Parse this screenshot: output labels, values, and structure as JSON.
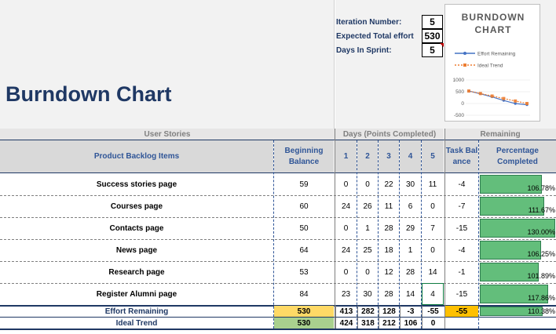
{
  "title": "Burndown Chart",
  "params": {
    "iteration_label": "Iteration Number:",
    "iteration_value": "5",
    "effort_label": "Expected Total effort",
    "effort_value": "530",
    "days_label": "Days In Sprint:",
    "days_value": "5"
  },
  "sections": {
    "user_stories": "User Stories",
    "days": "Days (Points Completed)",
    "remaining": "Remaining"
  },
  "headers": {
    "items": "Product Backlog Items",
    "beginning": "Beginning Balance",
    "days": [
      "1",
      "2",
      "3",
      "4",
      "5"
    ],
    "task_balance": "Task Balance",
    "percentage": "Percentage Completed"
  },
  "rows": [
    {
      "name": "Success stories page",
      "begin": "59",
      "days": [
        "0",
        "0",
        "22",
        "30",
        "11"
      ],
      "balance": "-4",
      "pct_text": "106.78%",
      "pct": 1.0678
    },
    {
      "name": "Courses page",
      "begin": "60",
      "days": [
        "24",
        "26",
        "11",
        "6",
        "0"
      ],
      "balance": "-7",
      "pct_text": "111.67%",
      "pct": 1.1167
    },
    {
      "name": "Contacts page",
      "begin": "50",
      "days": [
        "0",
        "1",
        "28",
        "29",
        "7"
      ],
      "balance": "-15",
      "pct_text": "130.00%",
      "pct": 1.3
    },
    {
      "name": "News page",
      "begin": "64",
      "days": [
        "24",
        "25",
        "18",
        "1",
        "0"
      ],
      "balance": "-4",
      "pct_text": "106.25%",
      "pct": 1.0625
    },
    {
      "name": "Research page",
      "begin": "53",
      "days": [
        "0",
        "0",
        "12",
        "28",
        "14"
      ],
      "balance": "-1",
      "pct_text": "101.89%",
      "pct": 1.0189
    },
    {
      "name": "Register Alumni page",
      "begin": "84",
      "days": [
        "23",
        "30",
        "28",
        "14",
        "4"
      ],
      "balance": "-15",
      "pct_text": "117.86%",
      "pct": 1.1786
    }
  ],
  "effort_remaining": {
    "label": "Effort Remaining",
    "begin": "530",
    "days": [
      "413",
      "282",
      "128",
      "-3",
      "-55"
    ],
    "balance": "-55",
    "pct_text": "110.38%",
    "pct": 1.1038
  },
  "ideal_trend": {
    "label": "Ideal Trend",
    "begin": "530",
    "days": [
      "424",
      "318",
      "212",
      "106",
      "0"
    ]
  },
  "chart_data": {
    "type": "line",
    "title": "BURNDOWN CHART",
    "series": [
      {
        "name": "Effort Remaining",
        "color": "#4472c4",
        "values": [
          530,
          413,
          282,
          128,
          -3,
          -55
        ]
      },
      {
        "name": "Ideal Trend",
        "color": "#ed7d31",
        "values": [
          530,
          424,
          318,
          212,
          106,
          0
        ]
      }
    ],
    "yticks": [
      "1000",
      "500",
      "0",
      "-500"
    ],
    "ylim": [
      -500,
      1000
    ],
    "legend": "top"
  },
  "colors": {
    "title": "#1f3864",
    "header_text": "#2f5597",
    "pct_fill": "#63be7b",
    "effort_begin": "#ffd966",
    "effort_balance": "#ffc000",
    "ideal_begin": "#a9d08e"
  }
}
